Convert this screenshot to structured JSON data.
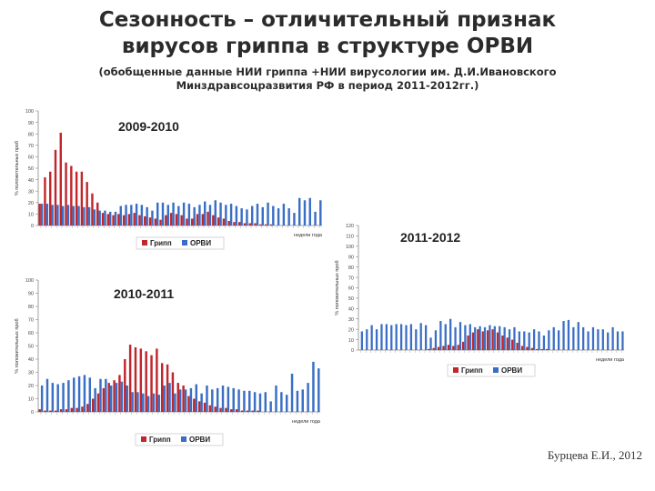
{
  "slide": {
    "title_line1": "Сезонность – отличительный признак",
    "title_line2": "вирусов гриппа в структуре ОРВИ",
    "subtitle_line1": "(обобщенные данные НИИ гриппа +НИИ вирусологии им. Д.И.Ивановского",
    "subtitle_line2": "Минздравсоцразвития РФ в период 2011-2012гг.)",
    "author": "Бурцева Е.И., 2012"
  },
  "colors": {
    "flu": "#c0272d",
    "arvi": "#3a6ec5",
    "axis": "#888888"
  },
  "chart_data": [
    {
      "type": "bar",
      "title": "2009-2010",
      "xlabel": "недели года",
      "ylabel": "% положительных проб",
      "ylim": [
        0,
        100
      ],
      "yticks": [
        0,
        10,
        20,
        30,
        40,
        50,
        60,
        70,
        80,
        90,
        100
      ],
      "series": [
        {
          "name": "Грипп",
          "values": [
            19,
            42,
            47,
            66,
            81,
            55,
            52,
            47,
            47,
            38,
            28,
            20,
            11,
            10,
            9,
            10,
            9,
            10,
            11,
            9,
            8,
            7,
            6,
            5,
            9,
            11,
            10,
            9,
            6,
            6,
            10,
            10,
            12,
            9,
            7,
            6,
            4,
            3,
            3,
            2,
            2,
            2,
            1,
            1,
            1,
            0,
            0,
            0,
            0,
            0,
            0,
            0,
            0,
            0
          ]
        },
        {
          "name": "ОРВИ",
          "values": [
            19,
            19,
            18,
            18,
            17,
            18,
            17,
            17,
            16,
            16,
            14,
            13,
            13,
            12,
            12,
            17,
            18,
            18,
            19,
            18,
            16,
            13,
            20,
            20,
            18,
            20,
            17,
            20,
            19,
            16,
            18,
            21,
            18,
            22,
            20,
            18,
            19,
            17,
            15,
            14,
            17,
            19,
            16,
            20,
            17,
            15,
            19,
            15,
            11,
            24,
            22,
            24,
            12,
            22
          ]
        }
      ]
    },
    {
      "type": "bar",
      "title": "2010-2011",
      "xlabel": "недели года",
      "ylabel": "% положительных проб",
      "ylim": [
        0,
        100
      ],
      "yticks": [
        0,
        10,
        20,
        30,
        40,
        50,
        60,
        70,
        80,
        90,
        100
      ],
      "series": [
        {
          "name": "Грипп",
          "values": [
            2,
            1,
            1,
            1,
            2,
            2,
            3,
            3,
            4,
            6,
            10,
            14,
            18,
            22,
            24,
            28,
            40,
            51,
            49,
            48,
            46,
            43,
            48,
            37,
            36,
            30,
            22,
            20,
            12,
            10,
            8,
            7,
            5,
            4,
            3,
            3,
            2,
            2,
            1,
            1,
            1,
            1,
            0,
            0,
            0,
            0,
            0,
            0,
            0,
            0,
            0,
            0,
            0
          ]
        },
        {
          "name": "ОРВИ",
          "values": [
            20,
            25,
            22,
            21,
            22,
            24,
            26,
            27,
            28,
            26,
            18,
            25,
            25,
            20,
            22,
            23,
            20,
            15,
            15,
            14,
            12,
            14,
            13,
            20,
            22,
            14,
            17,
            17,
            18,
            21,
            14,
            20,
            17,
            18,
            20,
            19,
            18,
            17,
            16,
            16,
            15,
            14,
            15,
            8,
            20,
            15,
            13,
            29,
            16,
            17,
            22,
            38,
            33
          ]
        }
      ]
    },
    {
      "type": "bar",
      "title": "2011-2012",
      "xlabel": "недели года",
      "ylabel": "% положительных проб",
      "ylim": [
        0,
        120
      ],
      "yticks": [
        0,
        10,
        20,
        30,
        40,
        50,
        60,
        70,
        80,
        90,
        100,
        110,
        120
      ],
      "series": [
        {
          "name": "Грипп",
          "values": [
            0,
            0,
            0,
            0,
            0,
            0,
            0,
            0,
            0,
            0,
            0,
            0,
            0,
            0,
            1,
            2,
            3,
            4,
            5,
            4,
            5,
            8,
            14,
            17,
            20,
            18,
            19,
            20,
            17,
            14,
            12,
            10,
            7,
            4,
            3,
            2,
            1,
            1,
            1,
            0,
            0,
            0,
            0,
            0,
            0,
            0,
            0,
            0,
            0,
            0,
            0,
            0,
            0,
            0
          ]
        },
        {
          "name": "ОРВИ",
          "values": [
            18,
            20,
            24,
            20,
            25,
            25,
            24,
            25,
            25,
            24,
            25,
            20,
            26,
            24,
            12,
            19,
            28,
            25,
            30,
            22,
            27,
            24,
            25,
            22,
            23,
            22,
            24,
            23,
            23,
            22,
            20,
            22,
            18,
            18,
            17,
            20,
            18,
            14,
            19,
            22,
            19,
            28,
            29,
            22,
            27,
            22,
            18,
            22,
            20,
            20,
            17,
            22,
            18,
            18
          ]
        }
      ]
    }
  ]
}
